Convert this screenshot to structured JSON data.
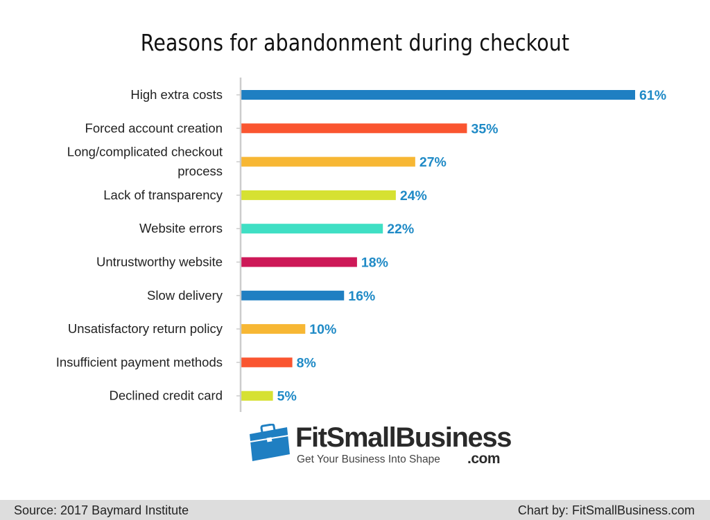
{
  "chart_data": {
    "type": "bar",
    "orientation": "horizontal",
    "title": "Reasons for abandonment during checkout",
    "xlabel": "",
    "ylabel": "",
    "xlim": [
      0,
      61
    ],
    "grid": false,
    "value_format": "{v}%",
    "categories": [
      "High extra costs",
      "Forced account creation",
      "Long/complicated checkout process",
      "Lack of transparency",
      "Website errors",
      "Untrustworthy website",
      "Slow delivery",
      "Unsatisfactory return policy",
      "Insufficient payment methods",
      "Declined credit card"
    ],
    "values": [
      61,
      35,
      27,
      24,
      22,
      18,
      16,
      10,
      8,
      5
    ],
    "bar_colors": [
      "#1f7fc2",
      "#fa5530",
      "#f7b734",
      "#d6e132",
      "#3fdfc4",
      "#cd1857",
      "#1f7fc2",
      "#f7b734",
      "#fa5530",
      "#d6e132"
    ]
  },
  "branding": {
    "name": "FitSmallBusiness",
    "domain": ".com",
    "tagline": "Get Your Business Into Shape",
    "logo_icon": "briefcase-icon",
    "logo_color": "#1f7fc2"
  },
  "footer": {
    "source": "Source: 2017 Baymard Institute",
    "credit": "Chart by: FitSmallBusiness.com"
  },
  "colors": {
    "value_label": "#1f8ac6",
    "axis": "#cccccc",
    "footer_bg": "#dddddd"
  }
}
